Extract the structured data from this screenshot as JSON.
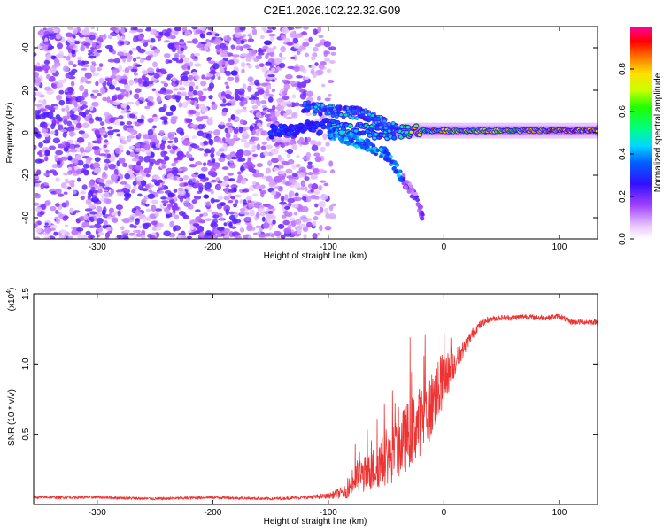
{
  "title": "C2E1.2026.102.22.32.G09",
  "colors": {
    "snr_line": "#ee3333",
    "axis": "#000000",
    "background": "#ffffff"
  },
  "chart_data": [
    {
      "id": "spectrogram",
      "type": "heatmap",
      "xlabel": "Height of straight line (km)",
      "ylabel": "Frequency (Hz)",
      "xlim": [
        -355,
        133
      ],
      "ylim": [
        -50,
        50
      ],
      "xticks": [
        -300,
        -200,
        -100,
        0,
        100
      ],
      "yticks": [
        -40,
        -20,
        0,
        20,
        40
      ],
      "colorbar": {
        "label": "Normalized spectral amplitude",
        "range": [
          0.0,
          1.0
        ],
        "ticks": [
          0.0,
          0.2,
          0.4,
          0.6,
          0.8
        ],
        "tick_labels": [
          "0.0",
          "0.2",
          "0.4",
          "0.6",
          "0.8"
        ],
        "colormap": "rainbow"
      },
      "features": {
        "noise_region_x": [
          -355,
          -100
        ],
        "main_ridge": [
          [
            -145,
            1
          ],
          [
            -120,
            2
          ],
          [
            -100,
            3
          ],
          [
            -75,
            1
          ],
          [
            -50,
            0
          ],
          [
            -30,
            1
          ],
          [
            0,
            1
          ],
          [
            50,
            1
          ],
          [
            100,
            1
          ],
          [
            133,
            1
          ]
        ],
        "descending_branch": [
          [
            -100,
            0
          ],
          [
            -70,
            -5
          ],
          [
            -50,
            -10
          ],
          [
            -35,
            -22
          ],
          [
            -25,
            -30
          ],
          [
            -18,
            -40
          ]
        ],
        "upper_branch": [
          [
            -120,
            12
          ],
          [
            -90,
            10
          ],
          [
            -70,
            9
          ],
          [
            -55,
            5
          ],
          [
            -40,
            1
          ]
        ]
      }
    },
    {
      "id": "snr",
      "type": "line",
      "xlabel": "Height of straight line (km)",
      "ylabel": "SNR (10 * v/v)",
      "scale_label": "(x10",
      "scale_exp": "4",
      "scale_close": ")",
      "xlim": [
        -355,
        133
      ],
      "ylim": [
        0,
        1.5
      ],
      "xticks": [
        -300,
        -200,
        -100,
        0,
        100
      ],
      "yticks": [
        0.5,
        1.0,
        1.5
      ],
      "ytick_labels": [
        "0.5",
        "1.0",
        "1.5"
      ],
      "x": [
        -355,
        -300,
        -250,
        -200,
        -150,
        -120,
        -100,
        -85,
        -75,
        -65,
        -55,
        -45,
        -35,
        -25,
        -15,
        -5,
        0,
        5,
        10,
        15,
        20,
        25,
        30,
        35,
        40,
        50,
        60,
        70,
        80,
        90,
        100,
        110,
        120,
        133
      ],
      "values": [
        0.05,
        0.05,
        0.04,
        0.05,
        0.04,
        0.05,
        0.06,
        0.09,
        0.2,
        0.22,
        0.3,
        0.35,
        0.45,
        0.55,
        0.65,
        0.8,
        0.9,
        0.95,
        1.02,
        1.08,
        1.15,
        1.22,
        1.27,
        1.3,
        1.32,
        1.33,
        1.33,
        1.34,
        1.33,
        1.33,
        1.34,
        1.3,
        1.3,
        1.3
      ],
      "noise": [
        0.01,
        0.01,
        0.01,
        0.01,
        0.01,
        0.012,
        0.02,
        0.05,
        0.12,
        0.14,
        0.18,
        0.2,
        0.24,
        0.25,
        0.25,
        0.22,
        0.2,
        0.14,
        0.1,
        0.06,
        0.05,
        0.04,
        0.03,
        0.025,
        0.02,
        0.02,
        0.02,
        0.02,
        0.02,
        0.02,
        0.02,
        0.02,
        0.02,
        0.02
      ]
    }
  ]
}
